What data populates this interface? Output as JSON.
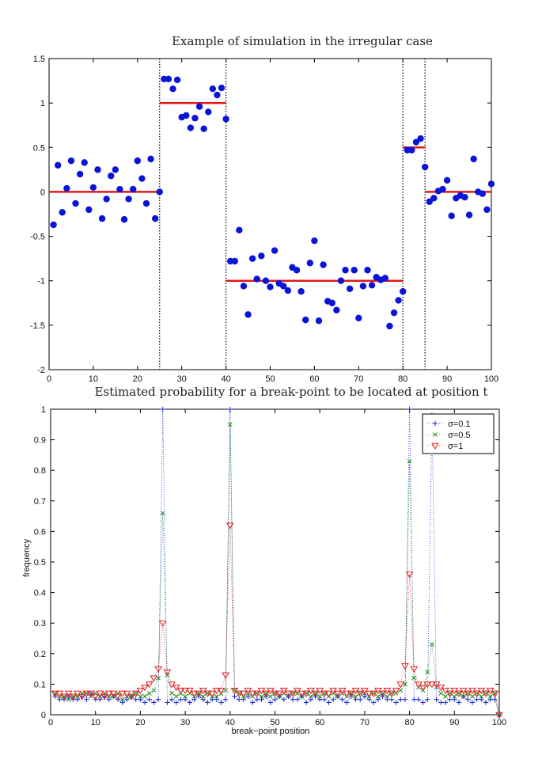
{
  "chart_data": [
    {
      "type": "scatter",
      "title": "Example of simulation in the irregular case",
      "xlabel": "",
      "ylabel": "",
      "xlim": [
        0,
        100
      ],
      "ylim": [
        -2,
        1.5
      ],
      "xticks": [
        0,
        10,
        20,
        30,
        40,
        50,
        60,
        70,
        80,
        90,
        100
      ],
      "yticks": [
        -2,
        -1.5,
        -1,
        -0.5,
        0,
        0.5,
        1,
        1.5
      ],
      "grid": false,
      "colors": {
        "points": "#0a14d6",
        "segments": "#e01818",
        "breaklines": "#000000"
      },
      "x": [
        1,
        2,
        3,
        4,
        5,
        6,
        7,
        8,
        9,
        10,
        11,
        12,
        13,
        14,
        15,
        16,
        17,
        18,
        19,
        20,
        21,
        22,
        23,
        24,
        25,
        26,
        27,
        28,
        29,
        30,
        31,
        32,
        33,
        34,
        35,
        36,
        37,
        38,
        39,
        40,
        41,
        42,
        43,
        44,
        45,
        46,
        47,
        48,
        49,
        50,
        51,
        52,
        53,
        54,
        55,
        56,
        57,
        58,
        59,
        60,
        61,
        62,
        63,
        64,
        65,
        66,
        67,
        68,
        69,
        70,
        71,
        72,
        73,
        74,
        75,
        76,
        77,
        78,
        79,
        80,
        81,
        82,
        83,
        84,
        85,
        86,
        87,
        88,
        89,
        90,
        91,
        92,
        93,
        94,
        95,
        96,
        97,
        98,
        99,
        100
      ],
      "y": [
        -0.37,
        0.3,
        -0.23,
        0.04,
        0.35,
        -0.13,
        0.2,
        0.33,
        -0.2,
        0.05,
        0.25,
        -0.3,
        -0.08,
        0.18,
        0.25,
        0.03,
        -0.31,
        -0.08,
        0.03,
        0.35,
        0.15,
        -0.13,
        0.37,
        -0.3,
        0.0,
        1.27,
        1.27,
        1.16,
        1.26,
        0.84,
        0.86,
        0.72,
        0.83,
        0.96,
        0.71,
        0.9,
        1.16,
        1.09,
        1.17,
        0.82,
        -0.78,
        -0.78,
        -0.43,
        -1.06,
        -1.38,
        -0.75,
        -0.98,
        -0.72,
        -1.0,
        -1.07,
        -0.66,
        -1.03,
        -1.06,
        -1.11,
        -0.85,
        -0.88,
        -1.12,
        -1.44,
        -0.8,
        -0.55,
        -1.45,
        -0.82,
        -1.23,
        -1.25,
        -1.33,
        -1.0,
        -0.88,
        -1.09,
        -0.88,
        -1.42,
        -1.06,
        -0.88,
        -1.05,
        -0.96,
        -0.99,
        -0.97,
        -1.51,
        -1.36,
        -1.22,
        -1.12,
        0.47,
        0.47,
        0.56,
        0.6,
        0.28,
        -0.11,
        -0.07,
        0.01,
        0.03,
        0.13,
        -0.27,
        -0.07,
        -0.04,
        -0.06,
        -0.26,
        0.37,
        0.0,
        -0.02,
        -0.2,
        0.09
      ],
      "segments": [
        {
          "x0": 0,
          "x1": 25,
          "y": 0
        },
        {
          "x0": 25,
          "x1": 40,
          "y": 1
        },
        {
          "x0": 40,
          "x1": 80,
          "y": -1
        },
        {
          "x0": 80,
          "x1": 85,
          "y": 0.5
        },
        {
          "x0": 85,
          "x1": 100,
          "y": 0
        }
      ],
      "breakpoints": [
        25,
        40,
        80,
        85
      ]
    },
    {
      "type": "scatter",
      "title": "Estimated probability for a break-point to be located at position t",
      "xlabel": "break−point position",
      "ylabel": "frequency",
      "xlim": [
        0,
        100
      ],
      "ylim": [
        0,
        1
      ],
      "xticks": [
        0,
        10,
        20,
        30,
        40,
        50,
        60,
        70,
        80,
        90,
        100
      ],
      "yticks": [
        0,
        0.1,
        0.2,
        0.3,
        0.4,
        0.5,
        0.6,
        0.7,
        0.8,
        0.9,
        1
      ],
      "legend_position": "top-right",
      "series": [
        {
          "name": "σ=0.1",
          "color": "#1a2ad8",
          "marker": "plus",
          "x": [
            1,
            2,
            3,
            4,
            5,
            6,
            7,
            8,
            9,
            10,
            11,
            12,
            13,
            14,
            15,
            16,
            17,
            18,
            19,
            20,
            21,
            22,
            23,
            24,
            25,
            26,
            27,
            28,
            29,
            30,
            31,
            32,
            33,
            34,
            35,
            36,
            37,
            38,
            39,
            40,
            41,
            42,
            43,
            44,
            45,
            46,
            47,
            48,
            49,
            50,
            51,
            52,
            53,
            54,
            55,
            56,
            57,
            58,
            59,
            60,
            61,
            62,
            63,
            64,
            65,
            66,
            67,
            68,
            69,
            70,
            71,
            72,
            73,
            74,
            75,
            76,
            77,
            78,
            79,
            80,
            81,
            82,
            83,
            84,
            85,
            86,
            87,
            88,
            89,
            90,
            91,
            92,
            93,
            94,
            95,
            96,
            97,
            98,
            99,
            100
          ],
          "values": [
            0.06,
            0.05,
            0.05,
            0.06,
            0.05,
            0.05,
            0.06,
            0.05,
            0.07,
            0.05,
            0.05,
            0.06,
            0.05,
            0.06,
            0.05,
            0.04,
            0.05,
            0.06,
            0.05,
            0.05,
            0.04,
            0.05,
            0.04,
            0.05,
            1.0,
            0.04,
            0.05,
            0.04,
            0.05,
            0.05,
            0.04,
            0.05,
            0.06,
            0.05,
            0.04,
            0.05,
            0.05,
            0.04,
            0.05,
            1.0,
            0.06,
            0.05,
            0.05,
            0.06,
            0.04,
            0.05,
            0.05,
            0.06,
            0.04,
            0.05,
            0.06,
            0.05,
            0.06,
            0.05,
            0.05,
            0.06,
            0.04,
            0.05,
            0.06,
            0.05,
            0.05,
            0.04,
            0.05,
            0.06,
            0.05,
            0.04,
            0.06,
            0.05,
            0.05,
            0.06,
            0.05,
            0.04,
            0.05,
            0.06,
            0.05,
            0.05,
            0.04,
            0.05,
            0.05,
            1.0,
            0.05,
            0.05,
            0.04,
            0.05,
            0.98,
            0.05,
            0.04,
            0.04,
            0.05,
            0.05,
            0.04,
            0.06,
            0.05,
            0.04,
            0.05,
            0.05,
            0.04,
            0.05,
            0.05,
            0.0
          ]
        },
        {
          "name": "σ=0.5",
          "color": "#1a8a1a",
          "marker": "x",
          "x": [
            1,
            2,
            3,
            4,
            5,
            6,
            7,
            8,
            9,
            10,
            11,
            12,
            13,
            14,
            15,
            16,
            17,
            18,
            19,
            20,
            21,
            22,
            23,
            24,
            25,
            26,
            27,
            28,
            29,
            30,
            31,
            32,
            33,
            34,
            35,
            36,
            37,
            38,
            39,
            40,
            41,
            42,
            43,
            44,
            45,
            46,
            47,
            48,
            49,
            50,
            51,
            52,
            53,
            54,
            55,
            56,
            57,
            58,
            59,
            60,
            61,
            62,
            63,
            64,
            65,
            66,
            67,
            68,
            69,
            70,
            71,
            72,
            73,
            74,
            75,
            76,
            77,
            78,
            79,
            80,
            81,
            82,
            83,
            84,
            85,
            86,
            87,
            88,
            89,
            90,
            91,
            92,
            93,
            94,
            95,
            96,
            97,
            98,
            99,
            100
          ],
          "values": [
            0.07,
            0.06,
            0.06,
            0.05,
            0.06,
            0.06,
            0.07,
            0.07,
            0.06,
            0.07,
            0.06,
            0.07,
            0.06,
            0.06,
            0.07,
            0.05,
            0.06,
            0.06,
            0.07,
            0.06,
            0.06,
            0.07,
            0.08,
            0.12,
            0.66,
            0.13,
            0.07,
            0.06,
            0.07,
            0.06,
            0.07,
            0.06,
            0.07,
            0.06,
            0.07,
            0.06,
            0.06,
            0.07,
            0.08,
            0.95,
            0.08,
            0.07,
            0.06,
            0.07,
            0.06,
            0.07,
            0.06,
            0.07,
            0.06,
            0.07,
            0.06,
            0.07,
            0.06,
            0.07,
            0.07,
            0.06,
            0.07,
            0.06,
            0.07,
            0.06,
            0.07,
            0.06,
            0.07,
            0.06,
            0.07,
            0.06,
            0.07,
            0.06,
            0.07,
            0.07,
            0.06,
            0.07,
            0.06,
            0.07,
            0.06,
            0.07,
            0.07,
            0.08,
            0.1,
            0.83,
            0.12,
            0.09,
            0.08,
            0.14,
            0.23,
            0.09,
            0.07,
            0.06,
            0.07,
            0.06,
            0.07,
            0.06,
            0.07,
            0.06,
            0.07,
            0.06,
            0.07,
            0.06,
            0.07,
            0.0
          ]
        },
        {
          "name": "σ=1",
          "color": "#e02020",
          "marker": "triangle-down",
          "x": [
            1,
            2,
            3,
            4,
            5,
            6,
            7,
            8,
            9,
            10,
            11,
            12,
            13,
            14,
            15,
            16,
            17,
            18,
            19,
            20,
            21,
            22,
            23,
            24,
            25,
            26,
            27,
            28,
            29,
            30,
            31,
            32,
            33,
            34,
            35,
            36,
            37,
            38,
            39,
            40,
            41,
            42,
            43,
            44,
            45,
            46,
            47,
            48,
            49,
            50,
            51,
            52,
            53,
            54,
            55,
            56,
            57,
            58,
            59,
            60,
            61,
            62,
            63,
            64,
            65,
            66,
            67,
            68,
            69,
            70,
            71,
            72,
            73,
            74,
            75,
            76,
            77,
            78,
            79,
            80,
            81,
            82,
            83,
            84,
            85,
            86,
            87,
            88,
            89,
            90,
            91,
            92,
            93,
            94,
            95,
            96,
            97,
            98,
            99,
            100
          ],
          "values": [
            0.07,
            0.07,
            0.06,
            0.07,
            0.06,
            0.07,
            0.06,
            0.07,
            0.07,
            0.06,
            0.07,
            0.06,
            0.07,
            0.07,
            0.06,
            0.07,
            0.07,
            0.06,
            0.07,
            0.08,
            0.09,
            0.1,
            0.12,
            0.15,
            0.3,
            0.14,
            0.1,
            0.09,
            0.08,
            0.08,
            0.08,
            0.07,
            0.07,
            0.08,
            0.07,
            0.07,
            0.08,
            0.08,
            0.13,
            0.62,
            0.08,
            0.07,
            0.07,
            0.08,
            0.07,
            0.07,
            0.08,
            0.07,
            0.08,
            0.07,
            0.07,
            0.08,
            0.07,
            0.07,
            0.08,
            0.07,
            0.07,
            0.08,
            0.07,
            0.08,
            0.07,
            0.07,
            0.08,
            0.07,
            0.08,
            0.07,
            0.07,
            0.08,
            0.07,
            0.08,
            0.07,
            0.07,
            0.08,
            0.07,
            0.08,
            0.07,
            0.08,
            0.1,
            0.16,
            0.46,
            0.15,
            0.1,
            0.09,
            0.1,
            0.1,
            0.1,
            0.09,
            0.08,
            0.07,
            0.08,
            0.07,
            0.08,
            0.07,
            0.08,
            0.07,
            0.08,
            0.07,
            0.08,
            0.07,
            0.0
          ]
        }
      ]
    }
  ]
}
